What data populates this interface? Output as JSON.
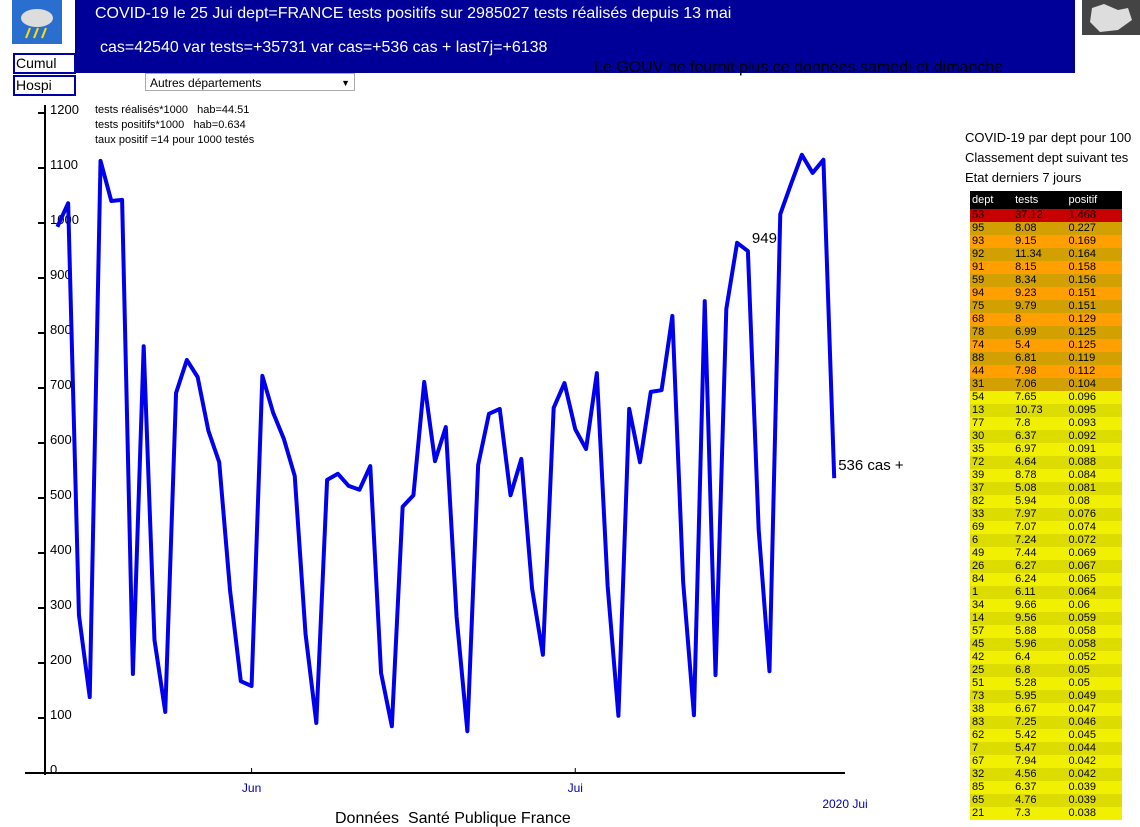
{
  "header": {
    "line1": "COVID-19 le 25 Jui dept=FRANCE tests positifs sur 2985027 tests réalisés depuis 13 mai",
    "line2": "cas=42540 var tests=+35731 var cas=+536 cas + last7j=+6138",
    "buttons": [
      "Cumul",
      "Hospi"
    ],
    "select": "Autres départements",
    "notice": "Le GOUV ne fournit plus ce données samedi et dimanche"
  },
  "chart_data": {
    "type": "line",
    "color": "#0000ee",
    "notes": [
      "tests réalisés*1000   hab=44.51",
      "tests positifs*1000   hab=0.634",
      "taux positif =14 pour 1000 testés"
    ],
    "values": [
      993,
      1036,
      287,
      138,
      1113,
      1040,
      1042,
      180,
      776,
      242,
      111,
      691,
      751,
      720,
      622,
      565,
      333,
      167,
      158,
      722,
      655,
      607,
      540,
      253,
      91,
      533,
      544,
      522,
      515,
      558,
      182,
      85,
      484,
      505,
      711,
      567,
      629,
      284,
      76,
      560,
      653,
      662,
      505,
      571,
      335,
      215,
      664,
      709,
      625,
      589,
      727,
      340,
      104,
      662,
      565,
      693,
      696,
      831,
      347,
      105,
      858,
      178,
      844,
      964,
      949,
      442,
      185,
      1016,
      1071,
      1124,
      1091,
      1115,
      536
    ],
    "value_labels": [
      null,
      null,
      null,
      null,
      null,
      null,
      null,
      null,
      null,
      null,
      null,
      null,
      null,
      null,
      null,
      null,
      null,
      null,
      null,
      null,
      null,
      null,
      null,
      null,
      null,
      null,
      null,
      null,
      null,
      null,
      null,
      null,
      null,
      null,
      null,
      null,
      null,
      null,
      null,
      null,
      null,
      null,
      null,
      null,
      null,
      null,
      null,
      null,
      null,
      null,
      null,
      null,
      null,
      null,
      null,
      null,
      null,
      null,
      null,
      null,
      null,
      null,
      null,
      null,
      "949",
      null,
      null,
      null,
      null,
      null,
      null,
      null,
      "536 cas +"
    ],
    "xlim": [
      -3,
      73
    ],
    "xticks": [
      {
        "value": 18,
        "label": "Jun"
      },
      {
        "value": 48,
        "label": "Jui"
      },
      {
        "value": 73,
        "label": "2020 Jui"
      }
    ],
    "ylim": [
      0,
      1200
    ],
    "yticks": [
      0,
      100,
      200,
      300,
      400,
      500,
      600,
      700,
      800,
      900,
      1000,
      1100,
      1200
    ],
    "source": "Données  Santé Publique France"
  },
  "sidebar": {
    "lines": [
      "COVID-19 par dept pour 100",
      "Classement dept suivant tes",
      "Etat derniers 7 jours"
    ],
    "table": {
      "columns": [
        "dept",
        "tests",
        "positif"
      ],
      "rows": [
        [
          53,
          37.12,
          1.468
        ],
        [
          95,
          8.08,
          0.227
        ],
        [
          93,
          9.15,
          0.169
        ],
        [
          92,
          11.34,
          0.164
        ],
        [
          91,
          8.15,
          0.158
        ],
        [
          59,
          8.34,
          0.156
        ],
        [
          94,
          9.23,
          0.151
        ],
        [
          75,
          9.79,
          0.151
        ],
        [
          68,
          8,
          0.129
        ],
        [
          78,
          6.99,
          0.125
        ],
        [
          74,
          5.4,
          0.125
        ],
        [
          88,
          6.81,
          0.119
        ],
        [
          44,
          7.98,
          0.112
        ],
        [
          31,
          7.06,
          0.104
        ],
        [
          54,
          7.65,
          0.096
        ],
        [
          13,
          10.73,
          0.095
        ],
        [
          77,
          7.8,
          0.093
        ],
        [
          30,
          6.37,
          0.092
        ],
        [
          35,
          6.97,
          0.091
        ],
        [
          72,
          4.64,
          0.088
        ],
        [
          39,
          8.78,
          0.084
        ],
        [
          37,
          5.08,
          0.081
        ],
        [
          82,
          5.94,
          0.08
        ],
        [
          33,
          7.97,
          0.076
        ],
        [
          69,
          7.07,
          0.074
        ],
        [
          6,
          7.24,
          0.072
        ],
        [
          49,
          7.44,
          0.069
        ],
        [
          26,
          6.27,
          0.067
        ],
        [
          84,
          6.24,
          0.065
        ],
        [
          1,
          6.11,
          0.064
        ],
        [
          34,
          9.66,
          0.06
        ],
        [
          14,
          9.56,
          0.059
        ],
        [
          57,
          5.88,
          0.058
        ],
        [
          45,
          5.96,
          0.058
        ],
        [
          42,
          6.4,
          0.052
        ],
        [
          25,
          6.8,
          0.05
        ],
        [
          51,
          5.28,
          0.05
        ],
        [
          73,
          5.95,
          0.049
        ],
        [
          38,
          6.67,
          0.047
        ],
        [
          83,
          7.25,
          0.046
        ],
        [
          62,
          5.42,
          0.045
        ],
        [
          7,
          5.47,
          0.044
        ],
        [
          67,
          7.94,
          0.042
        ],
        [
          32,
          4.56,
          0.042
        ],
        [
          85,
          6.37,
          0.039
        ],
        [
          65,
          4.76,
          0.039
        ],
        [
          21,
          7.3,
          0.038
        ]
      ]
    }
  }
}
